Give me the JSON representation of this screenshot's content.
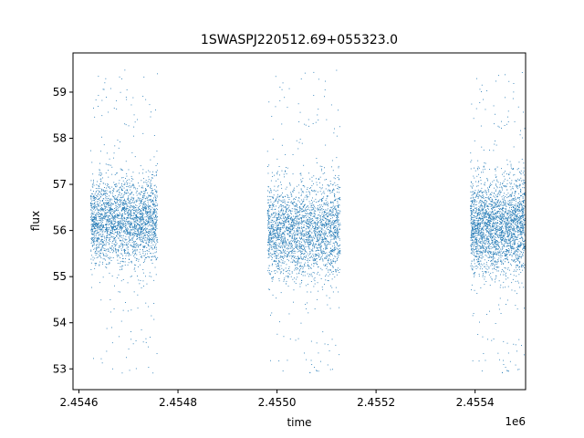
{
  "chart_data": {
    "type": "scatter",
    "title": "1SWASPJ220512.69+055323.0",
    "xlabel": "time",
    "ylabel": "flux",
    "x_offset_label": "1e6",
    "xlim": [
      2.454588,
      2.455502
    ],
    "ylim": [
      52.55,
      59.85
    ],
    "xticks": [
      2.4546,
      2.4548,
      2.455,
      2.4552,
      2.4554
    ],
    "xtick_labels": [
      "2.4546",
      "2.4548",
      "2.4550",
      "2.4552",
      "2.4554"
    ],
    "yticks": [
      53,
      54,
      55,
      56,
      57,
      58,
      59
    ],
    "ytick_labels": [
      "53",
      "54",
      "55",
      "56",
      "57",
      "58",
      "59"
    ],
    "grid": false,
    "point_color": "#1f77b4",
    "series": [
      {
        "observing_seasons": [
          {
            "x_range": [
              2.454623,
              2.454758
            ],
            "flux_center": 56.2,
            "flux_spread": 0.45,
            "flux_min": 52.9,
            "flux_max": 59.5
          },
          {
            "x_range": [
              2.45498,
              2.455127
            ],
            "flux_center": 56.0,
            "flux_spread": 0.5,
            "flux_min": 52.85,
            "flux_max": 59.5
          },
          {
            "x_range": [
              2.45539,
              2.4555
            ],
            "flux_center": 56.1,
            "flux_spread": 0.5,
            "flux_min": 52.85,
            "flux_max": 59.45
          }
        ]
      }
    ]
  }
}
